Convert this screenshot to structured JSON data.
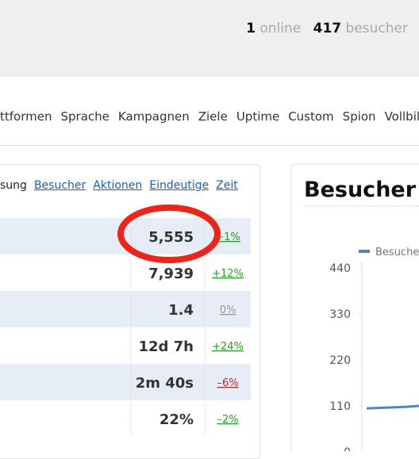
{
  "header": {
    "online_count": "1",
    "online_label": "online",
    "visitor_count": "417",
    "visitor_label": "besucher"
  },
  "nav": [
    "ttformen",
    "Sprache",
    "Kampagnen",
    "Ziele",
    "Uptime",
    "Custom",
    "Spion",
    "Vollbil"
  ],
  "table": {
    "columns": [
      "sung",
      "Besucher",
      "Aktionen",
      "Eindeutige",
      "Zeit"
    ],
    "rows": [
      [
        "5,555",
        "+1%"
      ],
      [
        "7,939",
        "+12%"
      ],
      [
        "1.4",
        "0%"
      ],
      [
        "12d 7h",
        "+24%"
      ],
      [
        "2m 40s",
        "–6%"
      ],
      [
        "22%",
        "–2%"
      ]
    ]
  },
  "chart": {
    "type": "line",
    "title": "Besucher",
    "series": [
      {
        "name": "Besucher",
        "color": "#4a86c8",
        "values": [
          104,
          105,
          106,
          107,
          108,
          110
        ]
      }
    ],
    "ylim": [
      0,
      440
    ],
    "yticks": [
      440,
      330,
      220,
      110,
      0
    ]
  }
}
